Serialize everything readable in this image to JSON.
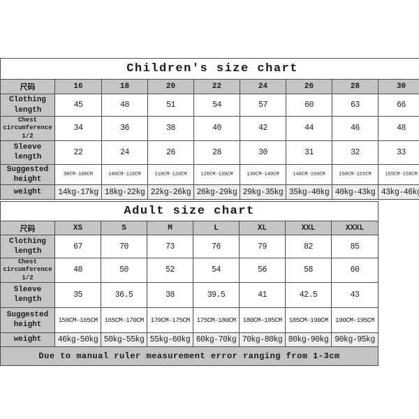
{
  "colors": {
    "page_background": "#ffffff",
    "header_cell_background": "#c5c5c5",
    "footer_bar_background": "#c3c3c3",
    "grid_border": "#4d4d4d",
    "value_text": "#3e3e3e"
  },
  "children_chart": {
    "title": "Children's size chart",
    "columns": [
      "尺码",
      "16",
      "18",
      "20",
      "22",
      "24",
      "26",
      "28",
      "30"
    ],
    "rows": [
      {
        "label": "Clothing length",
        "values": [
          "45",
          "48",
          "51",
          "54",
          "57",
          "60",
          "63",
          "66"
        ]
      },
      {
        "label": "Chest circumference 1/2",
        "values": [
          "34",
          "36",
          "38",
          "40",
          "42",
          "44",
          "46",
          "48"
        ]
      },
      {
        "label": "Sleeve length",
        "values": [
          "22",
          "24",
          "26",
          "28",
          "30",
          "31",
          "32",
          "33"
        ]
      },
      {
        "label": "Suggested height",
        "values": [
          "90CM-100CM",
          "100CM-110CM",
          "110CM-120CM",
          "120CM-130CM",
          "130CM-140CM",
          "140CM-150CM",
          "150CM-155CM",
          "155CM-158CM"
        ]
      },
      {
        "label": "weight",
        "values": [
          "14kg-17kg",
          "18kg-22kg",
          "22kg-26kg",
          "26kg-29kg",
          "29kg-35kg",
          "35kg-40kg",
          "40kg-43kg",
          "43kg-46kg"
        ]
      }
    ]
  },
  "adult_chart": {
    "title": "Adult size chart",
    "columns": [
      "尺码",
      "XS",
      "S",
      "M",
      "L",
      "XL",
      "XXL",
      "XXXL"
    ],
    "rows": [
      {
        "label": "Clothing length",
        "values": [
          "67",
          "70",
          "73",
          "76",
          "79",
          "82",
          "85"
        ]
      },
      {
        "label": "Chest circumference 1/2",
        "values": [
          "48",
          "50",
          "52",
          "54",
          "56",
          "58",
          "60"
        ]
      },
      {
        "label": "Sleeve length",
        "values": [
          "35",
          "36.5",
          "38",
          "39.5",
          "41",
          "42.5",
          "43"
        ]
      },
      {
        "label": "Suggested height",
        "values": [
          "158CM-165CM",
          "165CM-170CM",
          "170CM-175CM",
          "175CM-180CM",
          "180CM-185CM",
          "185CM-190CM",
          "190CM-195CM"
        ]
      },
      {
        "label": "weight",
        "values": [
          "46kg-50kg",
          "50kg-55kg",
          "55kg-60kg",
          "60kg-70kg",
          "70kg-80kg",
          "80kg-90kg",
          "90kg-95kg"
        ]
      }
    ],
    "footer_note": "Due to manual ruler measurement error ranging from 1-3cm"
  }
}
